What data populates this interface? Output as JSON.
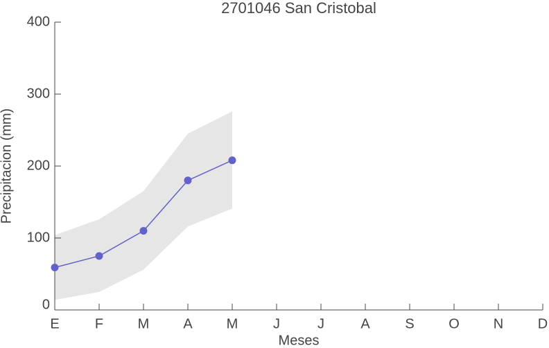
{
  "chart_data": {
    "type": "line",
    "title": "2701046 San Cristobal",
    "xlabel": "Meses",
    "ylabel": "Precipitacion (mm)",
    "categories": [
      "E",
      "F",
      "M",
      "A",
      "M",
      "J",
      "J",
      "A",
      "S",
      "O",
      "N",
      "D"
    ],
    "values": [
      59,
      75,
      110,
      180,
      208,
      null,
      null,
      null,
      null,
      null,
      null,
      null
    ],
    "band_upper": [
      104,
      126,
      165,
      245,
      276,
      null,
      null,
      null,
      null,
      null,
      null,
      null
    ],
    "band_lower": [
      14,
      25,
      56,
      116,
      141,
      null,
      null,
      null,
      null,
      null,
      null,
      null
    ],
    "color": "#6262c8",
    "band_color": "#e6e6e6",
    "ylim": [
      0,
      400
    ],
    "yticks": [
      0,
      100,
      200,
      300,
      400
    ]
  }
}
